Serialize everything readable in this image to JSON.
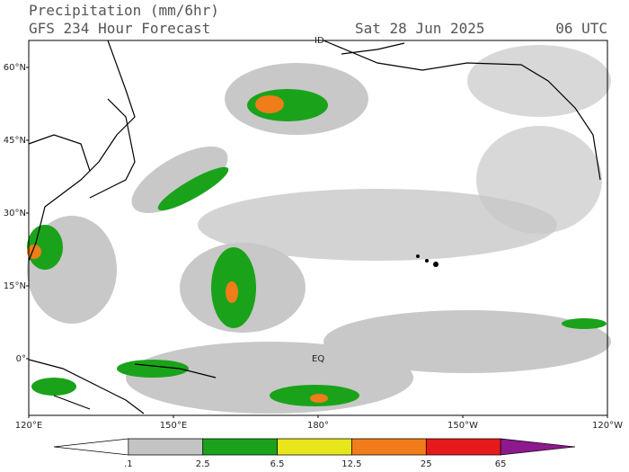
{
  "header": {
    "title": "Precipitation (mm/6hr)",
    "model": "GFS 234 Hour Forecast",
    "date": "Sat 28 Jun 2025",
    "time": "06 UTC"
  },
  "map": {
    "lat_labels": [
      "60°N",
      "45°N",
      "30°N",
      "15°N",
      "0°"
    ],
    "lon_labels": [
      "120°E",
      "150°E",
      "180°",
      "150°W",
      "120°W"
    ],
    "annotations": [
      "ID",
      "EQ"
    ]
  },
  "colorbar": {
    "labels": [
      ".1",
      "2.5",
      "6.5",
      "12.5",
      "25",
      "65"
    ],
    "colors": [
      "#ffffff",
      "#c4c4c4",
      "#1aa31a",
      "#e6e61a",
      "#f07d1a",
      "#e61a1a",
      "#8c1a8c"
    ]
  }
}
